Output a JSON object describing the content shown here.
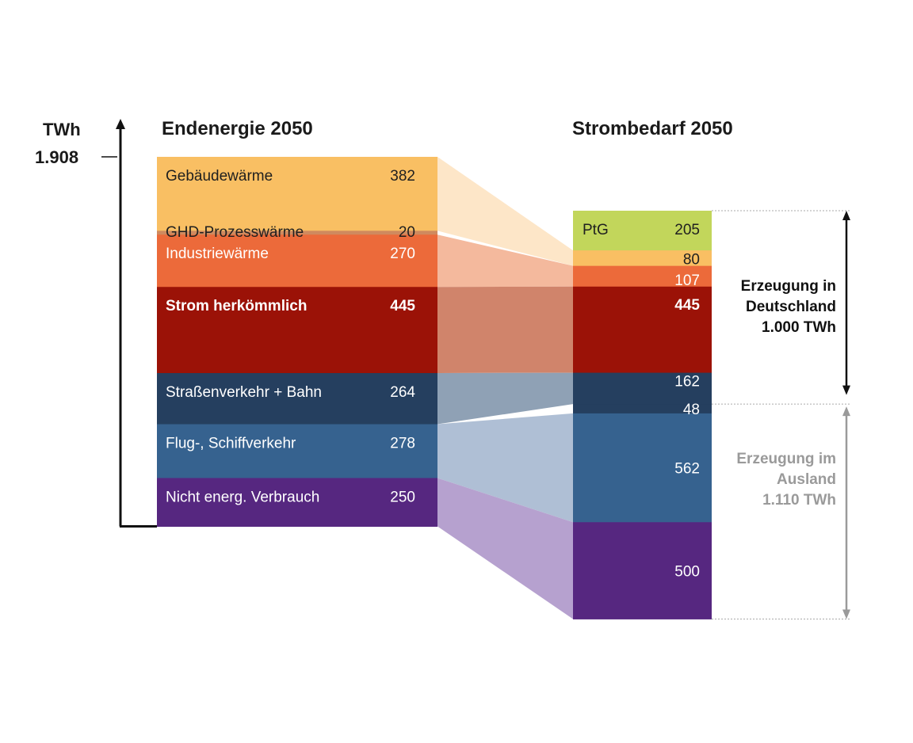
{
  "chart_data": {
    "type": "bar",
    "unit": "TWh",
    "total_label": "1.908",
    "columns": [
      {
        "title": "Endenergie 2050",
        "segments": [
          {
            "label": "Gebäudewärme",
            "value": 382,
            "value_label": "382",
            "color": "#f9bf63",
            "text_color": "#1f1f1f",
            "bold": false
          },
          {
            "label": "GHD-Prozesswärme",
            "value": 20,
            "value_label": "20",
            "color": "#d08a5e",
            "text_color": "#1f1f1f",
            "bold": false
          },
          {
            "label": "Industriewärme",
            "value": 270,
            "value_label": "270",
            "color": "#ec6a3a",
            "text_color": "#ffffff",
            "bold": false
          },
          {
            "label": "Strom herkömmlich",
            "value": 445,
            "value_label": "445",
            "color": "#9b1207",
            "text_color": "#ffffff",
            "bold": true
          },
          {
            "label": "Straßenverkehr + Bahn",
            "value": 264,
            "value_label": "264",
            "color": "#253f5f",
            "text_color": "#ffffff",
            "bold": false
          },
          {
            "label": "Flug-, Schiffverkehr",
            "value": 278,
            "value_label": "278",
            "color": "#36628f",
            "text_color": "#ffffff",
            "bold": false
          },
          {
            "label": "Nicht energ. Verbrauch",
            "value": 250,
            "value_label": "250",
            "color": "#562780",
            "text_color": "#ffffff",
            "bold": false
          }
        ]
      },
      {
        "title": "Strombedarf 2050",
        "segments": [
          {
            "label": "PtG",
            "value": 205,
            "value_label": "205",
            "color": "#c2d65b",
            "text_color": "#1f1f1f",
            "bold": false
          },
          {
            "label": "",
            "value": 80,
            "value_label": "80",
            "color": "#f9bf63",
            "text_color": "#1f1f1f",
            "bold": false
          },
          {
            "label": "",
            "value": 107,
            "value_label": "107",
            "color": "#ec6a3a",
            "text_color": "#ffffff",
            "bold": false
          },
          {
            "label": "",
            "value": 445,
            "value_label": "445",
            "color": "#9b1207",
            "text_color": "#ffffff",
            "bold": true
          },
          {
            "label": "",
            "value": 162,
            "value_label": "162",
            "color": "#253f5f",
            "text_color": "#ffffff",
            "bold": false
          },
          {
            "label": "",
            "value": 48,
            "value_label": "48",
            "color": "#253f5f",
            "text_color": "#ffffff",
            "bold": false
          },
          {
            "label": "",
            "value": 562,
            "value_label": "562",
            "color": "#36628f",
            "text_color": "#ffffff",
            "bold": false
          },
          {
            "label": "",
            "value": 500,
            "value_label": "500",
            "color": "#562780",
            "text_color": "#ffffff",
            "bold": false
          }
        ]
      }
    ],
    "flows": [
      {
        "from": 0,
        "to": 1,
        "color": "#fde6c8"
      },
      {
        "from": 2,
        "to": 2,
        "color": "#f4b99d"
      },
      {
        "from": 3,
        "to": 3,
        "color": "#d0846b"
      },
      {
        "from": 4,
        "to": 4,
        "color": "#8fa1b5"
      },
      {
        "from": 5,
        "to": 6,
        "color": "#afbfd5"
      },
      {
        "from": 6,
        "to": 7,
        "color": "#b6a1cf"
      }
    ],
    "brackets": [
      {
        "lines": [
          "Erzeugung in",
          "Deutschland",
          "1.000 TWh"
        ],
        "from_segment": 0,
        "to_segment": 4,
        "color": "#111111"
      },
      {
        "lines": [
          "Erzeugung im",
          "Ausland",
          "1.110 TWh"
        ],
        "from_segment": 5,
        "to_segment": 7,
        "color": "#9a9a9a"
      }
    ]
  }
}
